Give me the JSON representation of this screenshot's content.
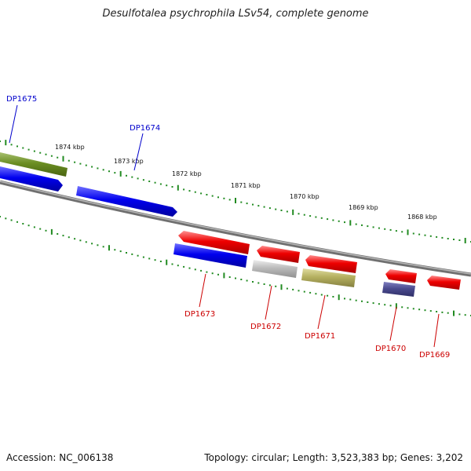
{
  "title": "Desulfotalea psychrophila LSv54, complete genome",
  "footer": {
    "accession": "Accession: NC_006138",
    "summary": "Topology: circular; Length: 3,523,383 bp; Genes: 3,202"
  },
  "scale_labels": [
    "1874 kbp",
    "1873 kbp",
    "1872 kbp",
    "1871 kbp",
    "1870 kbp",
    "1869 kbp",
    "1868 kbp"
  ],
  "genes": [
    {
      "id": "DP1675",
      "strand": "forward",
      "color": "#6b8e23",
      "label_color": "#0000cc"
    },
    {
      "id": "DP1674",
      "strand": "forward",
      "color": "#0000ee",
      "label_color": "#0000cc"
    },
    {
      "id": "DP1673",
      "strand": "reverse",
      "color": "#ee0000",
      "label_color": "#cc0000"
    },
    {
      "id": "DP1672",
      "strand": "reverse",
      "color": "#ee0000",
      "label_color": "#cc0000"
    },
    {
      "id": "DP1671",
      "strand": "reverse",
      "color": "#ee0000",
      "label_color": "#cc0000"
    },
    {
      "id": "DP1670",
      "strand": "reverse",
      "color": "#ee0000",
      "label_color": "#cc0000"
    },
    {
      "id": "DP1669",
      "strand": "reverse",
      "color": "#ee0000",
      "label_color": "#cc0000"
    }
  ],
  "colors": {
    "backbone": "#808080",
    "ticks": "#228b22",
    "cds_blue": "#0000ee",
    "cds_olive": "#6b8e23",
    "cds_gray": "#bbbbbb",
    "cds_khaki": "#b5b060",
    "cds_navy": "#4b4b8f"
  }
}
